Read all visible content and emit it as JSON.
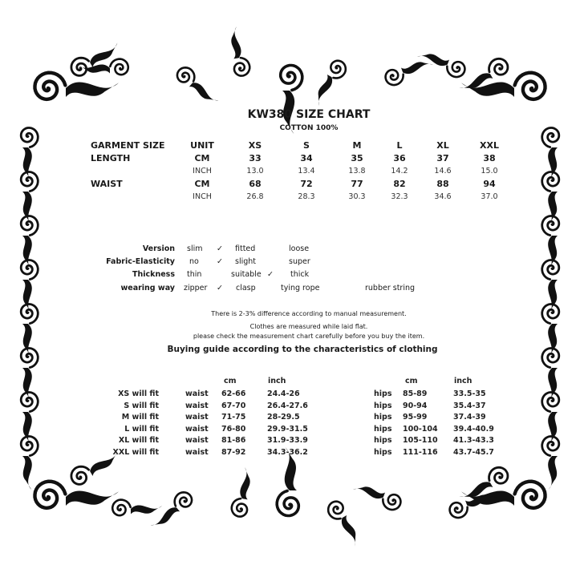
{
  "title": "KW380 SIZE CHART",
  "material": "COTTON 100%",
  "size_table": {
    "header": {
      "label": "GARMENT SIZE",
      "unit": "UNIT",
      "sizes": [
        "XS",
        "S",
        "M",
        "L",
        "XL",
        "XXL"
      ]
    },
    "rows": [
      {
        "label": "LENGTH",
        "unit": "CM",
        "values": [
          "33",
          "34",
          "35",
          "36",
          "37",
          "38"
        ]
      },
      {
        "label": "",
        "unit": "INCH",
        "values": [
          "13.0",
          "13.4",
          "13.8",
          "14.2",
          "14.6",
          "15.0"
        ]
      },
      {
        "label": "WAIST",
        "unit": "CM",
        "values": [
          "68",
          "72",
          "77",
          "82",
          "88",
          "94"
        ]
      },
      {
        "label": "",
        "unit": "INCH",
        "values": [
          "26.8",
          "28.3",
          "30.3",
          "32.3",
          "34.6",
          "37.0"
        ]
      }
    ]
  },
  "attributes": [
    {
      "label": "Version",
      "options": [
        "slim",
        "✓",
        "fitted",
        "loose"
      ]
    },
    {
      "label": "Fabric-Elasticity",
      "options": [
        "no",
        "✓",
        "slight",
        "super"
      ]
    },
    {
      "label": "Thickness",
      "options": [
        "thin",
        "suitable",
        "✓",
        "thick"
      ]
    },
    {
      "label": "wearing way",
      "options": [
        "zipper",
        "✓",
        "clasp",
        "tying rope",
        "rubber string"
      ]
    }
  ],
  "notes": [
    "There is 2-3% difference according to manual measurement.",
    "Clothes are measured while laid flat.",
    "please check the measurement chart carefully before you buy the item."
  ],
  "guide_title": "Buying guide according to the characteristics of clothing",
  "fit_table": {
    "headers": {
      "waist_cm": "cm",
      "waist_inch": "inch",
      "hips_cm": "cm",
      "hips_inch": "inch"
    },
    "rows": [
      {
        "label": "XS will  fit",
        "waist": "waist",
        "waist_cm": "62-66",
        "waist_inch": "24.4-26",
        "hips": "hips",
        "hips_cm": "85-89",
        "hips_inch": "33.5-35"
      },
      {
        "label": "S will  fit",
        "waist": "waist",
        "waist_cm": "67-70",
        "waist_inch": "26.4-27.6",
        "hips": "hips",
        "hips_cm": "90-94",
        "hips_inch": "35.4-37"
      },
      {
        "label": "M will fit",
        "waist": "waist",
        "waist_cm": "71-75",
        "waist_inch": "28-29.5",
        "hips": "hips",
        "hips_cm": "95-99",
        "hips_inch": "37.4-39"
      },
      {
        "label": "L will fit",
        "waist": "waist",
        "waist_cm": "76-80",
        "waist_inch": "29.9-31.5",
        "hips": "hips",
        "hips_cm": "100-104",
        "hips_inch": "39.4-40.9"
      },
      {
        "label": "XL will fit",
        "waist": "waist",
        "waist_cm": "81-86",
        "waist_inch": "31.9-33.9",
        "hips": "hips",
        "hips_cm": "105-110",
        "hips_inch": "41.3-43.3"
      },
      {
        "label": "XXL will fit",
        "waist": "waist",
        "waist_cm": "87-92",
        "waist_inch": "34.3-36.2",
        "hips": "hips",
        "hips_cm": "111-116",
        "hips_inch": "43.7-45.7"
      }
    ]
  },
  "colors": {
    "ink": "#111111",
    "background": "#ffffff"
  }
}
